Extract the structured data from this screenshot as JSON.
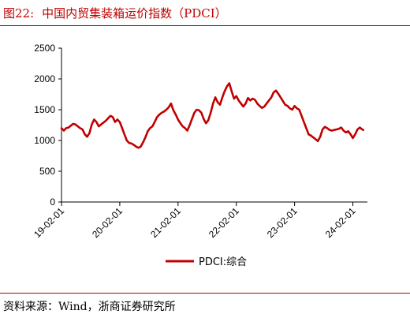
{
  "header": {
    "figure_number": "图22:",
    "title": "中国内贸集装箱运价指数（PDCI）"
  },
  "footer": {
    "source": "资料来源：Wind，浙商证券研究所"
  },
  "colors": {
    "accent": "#c00000",
    "axis": "#000000"
  },
  "chart_data": {
    "type": "line",
    "title": "",
    "xlabel": "",
    "ylabel": "",
    "ylim": [
      0,
      2500
    ],
    "yticks": [
      0,
      500,
      1000,
      1500,
      2000,
      2500
    ],
    "xticks": [
      {
        "label": "19-02-01",
        "x": 2019.0
      },
      {
        "label": "20-02-01",
        "x": 2020.0
      },
      {
        "label": "21-02-01",
        "x": 2021.0
      },
      {
        "label": "22-02-01",
        "x": 2022.0
      },
      {
        "label": "23-02-01",
        "x": 2023.0
      },
      {
        "label": "24-02-01",
        "x": 2024.0
      }
    ],
    "xlim": [
      2019.0,
      2024.25
    ],
    "grid": false,
    "legend": "bottom",
    "series": [
      {
        "name": "PDCI:综合",
        "color": "#c00000",
        "points": [
          [
            2019.0,
            1200
          ],
          [
            2019.04,
            1160
          ],
          [
            2019.08,
            1200
          ],
          [
            2019.12,
            1210
          ],
          [
            2019.16,
            1240
          ],
          [
            2019.2,
            1270
          ],
          [
            2019.24,
            1260
          ],
          [
            2019.28,
            1230
          ],
          [
            2019.32,
            1200
          ],
          [
            2019.36,
            1180
          ],
          [
            2019.4,
            1100
          ],
          [
            2019.44,
            1060
          ],
          [
            2019.48,
            1120
          ],
          [
            2019.52,
            1260
          ],
          [
            2019.56,
            1340
          ],
          [
            2019.6,
            1300
          ],
          [
            2019.64,
            1230
          ],
          [
            2019.68,
            1260
          ],
          [
            2019.72,
            1290
          ],
          [
            2019.76,
            1320
          ],
          [
            2019.8,
            1360
          ],
          [
            2019.84,
            1400
          ],
          [
            2019.88,
            1380
          ],
          [
            2019.92,
            1300
          ],
          [
            2019.96,
            1340
          ],
          [
            2020.0,
            1300
          ],
          [
            2020.04,
            1200
          ],
          [
            2020.08,
            1100
          ],
          [
            2020.12,
            1000
          ],
          [
            2020.16,
            960
          ],
          [
            2020.2,
            950
          ],
          [
            2020.24,
            930
          ],
          [
            2020.28,
            900
          ],
          [
            2020.32,
            880
          ],
          [
            2020.36,
            900
          ],
          [
            2020.4,
            970
          ],
          [
            2020.44,
            1050
          ],
          [
            2020.48,
            1150
          ],
          [
            2020.52,
            1200
          ],
          [
            2020.56,
            1230
          ],
          [
            2020.6,
            1300
          ],
          [
            2020.64,
            1380
          ],
          [
            2020.68,
            1420
          ],
          [
            2020.72,
            1450
          ],
          [
            2020.76,
            1470
          ],
          [
            2020.8,
            1500
          ],
          [
            2020.84,
            1540
          ],
          [
            2020.88,
            1600
          ],
          [
            2020.92,
            1490
          ],
          [
            2020.96,
            1420
          ],
          [
            2021.0,
            1340
          ],
          [
            2021.04,
            1280
          ],
          [
            2021.08,
            1230
          ],
          [
            2021.12,
            1200
          ],
          [
            2021.16,
            1160
          ],
          [
            2021.2,
            1250
          ],
          [
            2021.24,
            1350
          ],
          [
            2021.28,
            1450
          ],
          [
            2021.32,
            1500
          ],
          [
            2021.36,
            1490
          ],
          [
            2021.4,
            1450
          ],
          [
            2021.44,
            1350
          ],
          [
            2021.48,
            1280
          ],
          [
            2021.52,
            1330
          ],
          [
            2021.56,
            1450
          ],
          [
            2021.6,
            1600
          ],
          [
            2021.64,
            1700
          ],
          [
            2021.68,
            1620
          ],
          [
            2021.72,
            1580
          ],
          [
            2021.76,
            1700
          ],
          [
            2021.8,
            1800
          ],
          [
            2021.84,
            1880
          ],
          [
            2021.88,
            1930
          ],
          [
            2021.92,
            1800
          ],
          [
            2021.96,
            1680
          ],
          [
            2022.0,
            1720
          ],
          [
            2022.04,
            1650
          ],
          [
            2022.08,
            1600
          ],
          [
            2022.12,
            1550
          ],
          [
            2022.16,
            1600
          ],
          [
            2022.2,
            1690
          ],
          [
            2022.24,
            1650
          ],
          [
            2022.28,
            1680
          ],
          [
            2022.32,
            1660
          ],
          [
            2022.36,
            1600
          ],
          [
            2022.4,
            1560
          ],
          [
            2022.44,
            1530
          ],
          [
            2022.48,
            1550
          ],
          [
            2022.52,
            1600
          ],
          [
            2022.56,
            1650
          ],
          [
            2022.6,
            1700
          ],
          [
            2022.64,
            1780
          ],
          [
            2022.68,
            1810
          ],
          [
            2022.72,
            1760
          ],
          [
            2022.76,
            1700
          ],
          [
            2022.8,
            1640
          ],
          [
            2022.84,
            1580
          ],
          [
            2022.88,
            1560
          ],
          [
            2022.92,
            1520
          ],
          [
            2022.96,
            1500
          ],
          [
            2023.0,
            1560
          ],
          [
            2023.04,
            1520
          ],
          [
            2023.08,
            1500
          ],
          [
            2023.12,
            1400
          ],
          [
            2023.16,
            1300
          ],
          [
            2023.2,
            1200
          ],
          [
            2023.24,
            1100
          ],
          [
            2023.28,
            1080
          ],
          [
            2023.32,
            1050
          ],
          [
            2023.36,
            1020
          ],
          [
            2023.4,
            990
          ],
          [
            2023.44,
            1060
          ],
          [
            2023.48,
            1180
          ],
          [
            2023.52,
            1220
          ],
          [
            2023.56,
            1200
          ],
          [
            2023.6,
            1170
          ],
          [
            2023.64,
            1160
          ],
          [
            2023.68,
            1170
          ],
          [
            2023.72,
            1180
          ],
          [
            2023.76,
            1190
          ],
          [
            2023.8,
            1210
          ],
          [
            2023.84,
            1160
          ],
          [
            2023.88,
            1130
          ],
          [
            2023.92,
            1150
          ],
          [
            2023.96,
            1100
          ],
          [
            2024.0,
            1040
          ],
          [
            2024.04,
            1100
          ],
          [
            2024.08,
            1180
          ],
          [
            2024.12,
            1210
          ],
          [
            2024.16,
            1180
          ],
          [
            2024.18,
            1170
          ]
        ]
      }
    ]
  }
}
